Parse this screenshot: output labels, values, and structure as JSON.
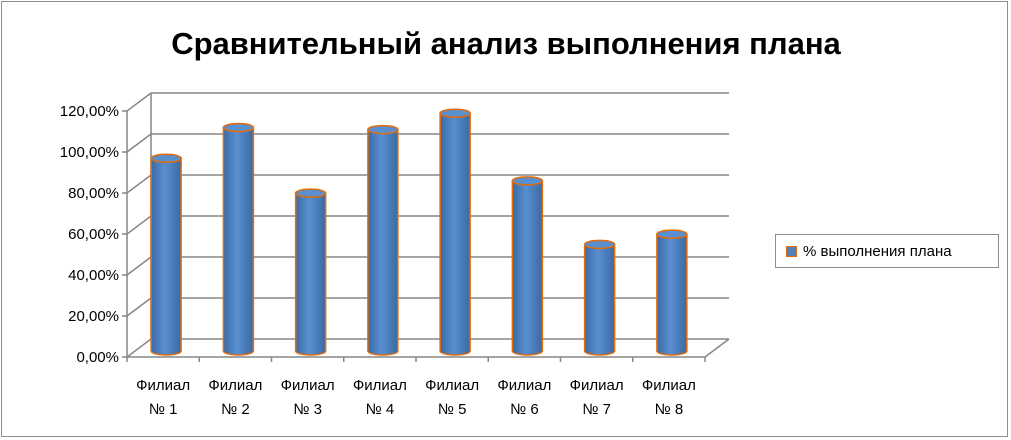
{
  "chart_data": {
    "type": "bar",
    "title": "Сравнительный анализ выполнения плана",
    "categories": [
      "Филиал № 1",
      "Филиал № 2",
      "Филиал № 3",
      "Филиал № 4",
      "Филиал № 5",
      "Филиал № 6",
      "Филиал № 7",
      "Филиал № 8"
    ],
    "category_lines": [
      [
        "Филиал",
        "№ 1"
      ],
      [
        "Филиал",
        "№ 2"
      ],
      [
        "Филиал",
        "№ 3"
      ],
      [
        "Филиал",
        "№ 4"
      ],
      [
        "Филиал",
        "№ 5"
      ],
      [
        "Филиал",
        "№ 6"
      ],
      [
        "Филиал",
        "№ 7"
      ],
      [
        "Филиал",
        "№ 8"
      ]
    ],
    "series": [
      {
        "name": "% выполнения плана",
        "values": [
          94,
          109,
          77,
          108,
          116,
          83,
          52,
          57
        ]
      }
    ],
    "ylim": [
      0,
      120
    ],
    "yticks": [
      "0,00%",
      "20,00%",
      "40,00%",
      "60,00%",
      "80,00%",
      "100,00%",
      "120,00%"
    ],
    "grid": true,
    "legend_position": "right",
    "style": "3d-cylinder",
    "colors": {
      "bar_fill": "#4f81bd",
      "bar_edge": "#e46c0a",
      "grid": "#868686"
    }
  }
}
